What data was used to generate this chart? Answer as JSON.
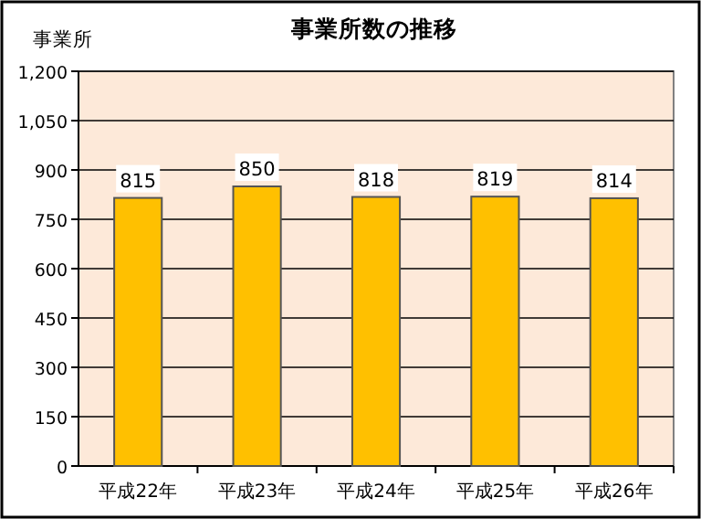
{
  "chart_data": {
    "type": "bar",
    "title": "事業所数の推移",
    "ylabel": "事業所",
    "categories": [
      "平成22年",
      "平成23年",
      "平成24年",
      "平成25年",
      "平成26年"
    ],
    "values": [
      815,
      850,
      818,
      819,
      814
    ],
    "color": "#ffc000",
    "ylim": [
      0,
      1200
    ],
    "yticks": [
      0,
      150,
      300,
      450,
      600,
      750,
      900,
      {
        "value": 1050,
        "label": "1,050"
      },
      {
        "value": 1200,
        "label": "1,200"
      }
    ],
    "grid": "y",
    "data_labels": true
  }
}
